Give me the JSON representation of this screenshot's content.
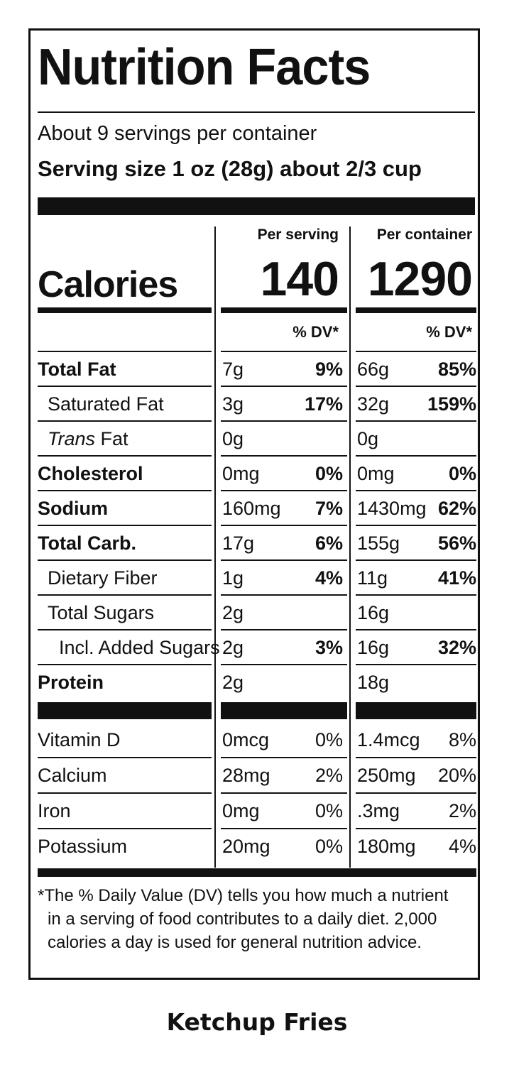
{
  "panel": {
    "title": "Nutrition Facts",
    "servings_per_container": "About 9 servings per container",
    "serving_size": "Serving size 1 oz (28g) about 2/3 cup",
    "col1_header": "Per serving",
    "col2_header": "Per container",
    "calories_label": "Calories",
    "calories_per_serving": "140",
    "calories_per_container": "1290",
    "dv_header": "% DV*"
  },
  "nutrients": [
    {
      "name": "Total Fat",
      "style": "bold",
      "serving_amt": "7g",
      "serving_pct": "9%",
      "container_amt": "66g",
      "container_pct": "85%"
    },
    {
      "name": "Saturated Fat",
      "style": "sub",
      "serving_amt": "3g",
      "serving_pct": "17%",
      "container_amt": "32g",
      "container_pct": "159%"
    },
    {
      "name_italic": "Trans",
      "name_rest": " Fat",
      "style": "sub",
      "serving_amt": "0g",
      "serving_pct": "",
      "container_amt": "0g",
      "container_pct": ""
    },
    {
      "name": "Cholesterol",
      "style": "bold",
      "serving_amt": "0mg",
      "serving_pct": "0%",
      "container_amt": "0mg",
      "container_pct": "0%"
    },
    {
      "name": "Sodium",
      "style": "bold",
      "serving_amt": "160mg",
      "serving_pct": "7%",
      "container_amt": "1430mg",
      "container_pct": "62%"
    },
    {
      "name": "Total Carb.",
      "style": "bold",
      "serving_amt": "17g",
      "serving_pct": "6%",
      "container_amt": "155g",
      "container_pct": "56%"
    },
    {
      "name": "Dietary Fiber",
      "style": "sub",
      "serving_amt": "1g",
      "serving_pct": "4%",
      "container_amt": "11g",
      "container_pct": "41%"
    },
    {
      "name": "Total Sugars",
      "style": "sub",
      "serving_amt": "2g",
      "serving_pct": "",
      "container_amt": "16g",
      "container_pct": ""
    },
    {
      "name": "Incl. Added Sugars",
      "style": "subsub",
      "serving_amt": "2g",
      "serving_pct": "3%",
      "container_amt": "16g",
      "container_pct": "32%"
    },
    {
      "name": "Protein",
      "style": "bold",
      "serving_amt": "2g",
      "serving_pct": "",
      "container_amt": "18g",
      "container_pct": ""
    }
  ],
  "vitamins": [
    {
      "name": "Vitamin D",
      "serving_amt": "0mcg",
      "serving_pct": "0%",
      "container_amt": "1.4mcg",
      "container_pct": "8%"
    },
    {
      "name": "Calcium",
      "serving_amt": "28mg",
      "serving_pct": "2%",
      "container_amt": "250mg",
      "container_pct": "20%"
    },
    {
      "name": "Iron",
      "serving_amt": "0mg",
      "serving_pct": "0%",
      "container_amt": ".3mg",
      "container_pct": "2%"
    },
    {
      "name": "Potassium",
      "serving_amt": "20mg",
      "serving_pct": "0%",
      "container_amt": "180mg",
      "container_pct": "4%"
    }
  ],
  "footnote": {
    "line1": "*The % Daily Value (DV) tells you how much a nutrient",
    "line2": "in a serving of food contributes to a daily diet. 2,000",
    "line3": "calories a day is used for general nutrition advice."
  },
  "product_name": "Ketchup Fries"
}
